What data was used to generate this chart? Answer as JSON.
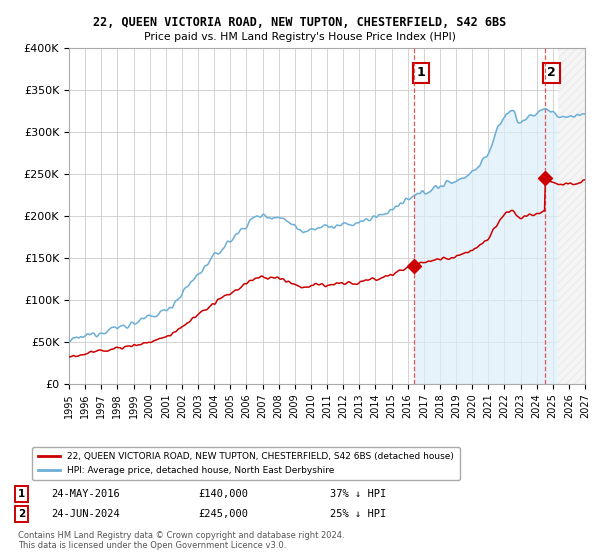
{
  "title": "22, QUEEN VICTORIA ROAD, NEW TUPTON, CHESTERFIELD, S42 6BS",
  "subtitle": "Price paid vs. HM Land Registry's House Price Index (HPI)",
  "hpi_color": "#6baed6",
  "hpi_fill_color": "#ddeef8",
  "price_color": "#cc0000",
  "bg_color": "#ffffff",
  "grid_color": "#cccccc",
  "ylim": [
    0,
    400000
  ],
  "yticks": [
    0,
    50000,
    100000,
    150000,
    200000,
    250000,
    300000,
    350000,
    400000
  ],
  "legend_label_red": "22, QUEEN VICTORIA ROAD, NEW TUPTON, CHESTERFIELD, S42 6BS (detached house)",
  "legend_label_blue": "HPI: Average price, detached house, North East Derbyshire",
  "annotation1_date": "24-MAY-2016",
  "annotation1_price": "£140,000",
  "annotation1_hpi": "37% ↓ HPI",
  "annotation2_date": "24-JUN-2024",
  "annotation2_price": "£245,000",
  "annotation2_hpi": "25% ↓ HPI",
  "copyright_text": "Contains HM Land Registry data © Crown copyright and database right 2024.\nThis data is licensed under the Open Government Licence v3.0.",
  "vline1_x": 2016.4,
  "vline2_x": 2024.5,
  "sale1_x": 2016.4,
  "sale1_y": 140000,
  "sale2_x": 2024.5,
  "sale2_y": 245000,
  "xmin": 1995,
  "xmax": 2027.0
}
